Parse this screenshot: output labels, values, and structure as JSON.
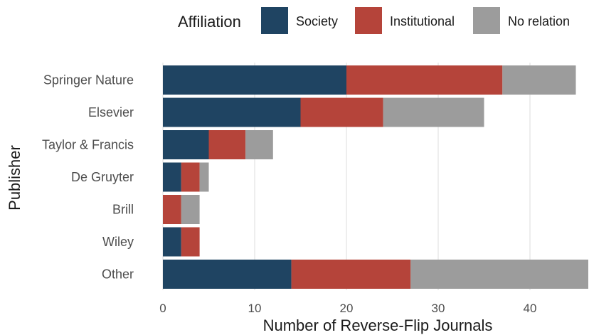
{
  "chart_data": {
    "type": "bar",
    "orientation": "horizontal",
    "stacked": true,
    "categories": [
      "Springer Nature",
      "Elsevier",
      "Taylor & Francis",
      "De Gruyter",
      "Brill",
      "Wiley",
      "Other"
    ],
    "series": [
      {
        "name": "Society",
        "color": "#1f4462",
        "values": [
          20,
          15,
          5,
          2,
          0,
          2,
          14
        ]
      },
      {
        "name": "Institutional",
        "color": "#b5443a",
        "values": [
          17,
          9,
          4,
          2,
          2,
          2,
          13
        ]
      },
      {
        "name": "No relation",
        "color": "#9c9c9c",
        "values": [
          8,
          11,
          3,
          1,
          2,
          0,
          20
        ]
      }
    ],
    "xlabel": "Number of Reverse-Flip Journals",
    "ylabel": "Publisher",
    "xlim": [
      0,
      46
    ],
    "xticks": [
      0,
      10,
      20,
      30,
      40
    ],
    "legend": {
      "title": "Affiliation",
      "position": "top"
    },
    "grid": true
  }
}
